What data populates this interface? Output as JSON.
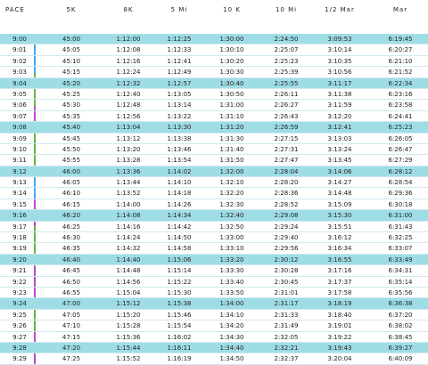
{
  "headers": [
    "PACE",
    "5K",
    "8K",
    "5 Mi",
    "10 K",
    "10 Mi",
    "1/2 Mar",
    "Mar"
  ],
  "rows": [
    [
      "9:00",
      "45:00",
      "1:12:00",
      "1:12:25",
      "1:30:00",
      "2:24:50",
      "3:09:53",
      "6:19:45"
    ],
    [
      "9:01",
      "45:05",
      "1:12:08",
      "1:12:33",
      "1:30:10",
      "2:25:07",
      "3:10:14",
      "6:20:27"
    ],
    [
      "9:02",
      "45:10",
      "1:12:16",
      "1:12:41",
      "1:30:20",
      "2:25:23",
      "3:10:35",
      "6:21:10"
    ],
    [
      "9:03",
      "45:15",
      "1:12:24",
      "1:12:49",
      "1:30:30",
      "2:25:39",
      "3:10:56",
      "6:21:52"
    ],
    [
      "9:04",
      "45:20",
      "1:12:32",
      "1:12:57",
      "1:30:40",
      "2:25:55",
      "3:11:17",
      "6:22:34"
    ],
    [
      "9:05",
      "45:25",
      "1:12:40",
      "1:13:05",
      "1:30:50",
      "2:26:11",
      "3:11:38",
      "6:23:16"
    ],
    [
      "9:06",
      "45:30",
      "1:12:48",
      "1:13:14",
      "1:31:00",
      "2:26:27",
      "3:11:59",
      "6:23:58"
    ],
    [
      "9:07",
      "45:35",
      "1:12:56",
      "1:13:22",
      "1:31:10",
      "2:26:43",
      "3:12:20",
      "6:24:41"
    ],
    [
      "9:08",
      "45:40",
      "1:13:04",
      "1:13:30",
      "1:31:20",
      "2:26:59",
      "3:12:41",
      "6:25:23"
    ],
    [
      "9:09",
      "45:45",
      "1:13:12",
      "1:13:38",
      "1:31:30",
      "2:27:15",
      "3:13:03",
      "6:26:05"
    ],
    [
      "9:10",
      "45:50",
      "1:13:20",
      "1:13:46",
      "1:31:40",
      "2:27:31",
      "3:13:24",
      "6:26:47"
    ],
    [
      "9:11",
      "45:55",
      "1:13:28",
      "1:13:54",
      "1:31:50",
      "2:27:47",
      "3:13:45",
      "6:27:29"
    ],
    [
      "9:12",
      "46:00",
      "1:13:36",
      "1:14:02",
      "1:32:00",
      "2:28:04",
      "3:14:06",
      "6:28:12"
    ],
    [
      "9:13",
      "46:05",
      "1:13:44",
      "1:14:10",
      "1:32:10",
      "2:28:20",
      "3:14:27",
      "6:28:54"
    ],
    [
      "9:14",
      "46:10",
      "1:13:52",
      "1:14:18",
      "1:32:20",
      "2:28:36",
      "3:14:48",
      "6:29:36"
    ],
    [
      "9:15",
      "46:15",
      "1:14:00",
      "1:14:26",
      "1:32:30",
      "2:28:52",
      "3:15:09",
      "6:30:18"
    ],
    [
      "9:16",
      "46:20",
      "1:14:08",
      "1:14:34",
      "1:32:40",
      "2:29:08",
      "3:15:30",
      "6:31:00"
    ],
    [
      "9:17",
      "46:25",
      "1:14:16",
      "1:14:42",
      "1:32:50",
      "2:29:24",
      "3:15:51",
      "6:31:43"
    ],
    [
      "9:18",
      "46:30",
      "1:14:24",
      "1:14:50",
      "1:33:00",
      "2:29:40",
      "3:16:12",
      "6:32:25"
    ],
    [
      "9:19",
      "46:35",
      "1:14:32",
      "1:14:58",
      "1:33:10",
      "2:29:56",
      "3:16:34",
      "6:33:07"
    ],
    [
      "9:20",
      "46:40",
      "1:14:40",
      "1:15:06",
      "1:33:20",
      "2:30:12",
      "3:16:55",
      "6:33:49"
    ],
    [
      "9:21",
      "46:45",
      "1:14:48",
      "1:15:14",
      "1:33:30",
      "2:30:28",
      "3:17:16",
      "6:34:31"
    ],
    [
      "9:22",
      "46:50",
      "1:14:56",
      "1:15:22",
      "1:33:40",
      "2:30:45",
      "3:17:37",
      "6:35:14"
    ],
    [
      "9:23",
      "46:55",
      "1:15:04",
      "1:15:30",
      "1:33:50",
      "2:31:01",
      "3:17:58",
      "6:35:56"
    ],
    [
      "9:24",
      "47:00",
      "1:15:12",
      "1:15:38",
      "1:34:00",
      "2:31:17",
      "3:18:19",
      "6:36:38"
    ],
    [
      "9:25",
      "47:05",
      "1:15:20",
      "1:15:46",
      "1:34:10",
      "2:31:33",
      "3:18:40",
      "6:37:20"
    ],
    [
      "9:26",
      "47:10",
      "1:15:28",
      "1:15:54",
      "1:34:20",
      "2:31:49",
      "3:19:01",
      "6:38:02"
    ],
    [
      "9:27",
      "47:15",
      "1:15:36",
      "1:16:02",
      "1:34:30",
      "2:32:05",
      "3:19:22",
      "6:38:45"
    ],
    [
      "9:28",
      "47:20",
      "1:15:44",
      "1:16:11",
      "1:34:40",
      "2:32:21",
      "3:19:43",
      "6:39:27"
    ],
    [
      "9:29",
      "47:25",
      "1:15:52",
      "1:16:19",
      "1:34:50",
      "2:32:37",
      "3:20:04",
      "6:40:09"
    ]
  ],
  "highlighted_rows": [
    "9:00",
    "9:04",
    "9:08",
    "9:12",
    "9:16",
    "9:20",
    "9:24",
    "9:28"
  ],
  "colors": {
    "highlight": "#9fdde6",
    "row_border": "#cfe9f0",
    "text": "#222222"
  }
}
